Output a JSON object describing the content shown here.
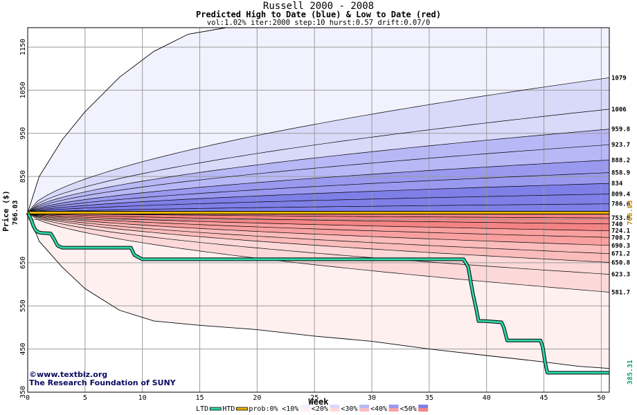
{
  "header": {
    "title": "Russell 2000 - 2008",
    "subtitle": "Predicted High to Date (blue) &  Low to Date (red)",
    "params": "vol:1.02% iter:2000 step:10 hurst:0.57 drift:0.07/0"
  },
  "credits": {
    "line1": "www.textbiz.org",
    "line2": "The Research Foundation of SUNY"
  },
  "colors": {
    "htd": "#e8b400",
    "ltd": "#2ed6a6",
    "blue_bands": [
      "#f2f2fe",
      "#d9d9fa",
      "#b8b8f6",
      "#9999f0",
      "#7f7fe8"
    ],
    "red_bands": [
      "#fff0f0",
      "#fdd8d8",
      "#fbbcbc",
      "#f9a0a0",
      "#f48484"
    ]
  },
  "chart_data": {
    "type": "line",
    "title": "Russell 2000 - 2008",
    "xlabel": "Week",
    "ylabel": "Price ($)",
    "xlim": [
      0,
      50.7
    ],
    "ylim": [
      350,
      1195
    ],
    "x_ticks": [
      0,
      5,
      10,
      15,
      20,
      25,
      30,
      35,
      40,
      45,
      50
    ],
    "y_ticks": [
      350,
      450,
      550,
      650,
      750,
      850,
      950,
      1050,
      1150
    ],
    "y_tick_labels": [
      "350",
      "450",
      "550",
      "650",
      "",
      "850",
      "950",
      "1050",
      "1150"
    ],
    "start_price": 766.03,
    "start_price_label": "766.03",
    "htd_value_label": "766.03",
    "ltd_value_label": "385.31",
    "grid": true,
    "upper_envelope": [
      [
        0,
        766
      ],
      [
        1,
        850
      ],
      [
        3,
        935
      ],
      [
        5,
        1000
      ],
      [
        8,
        1080
      ],
      [
        11,
        1140
      ],
      [
        14,
        1180
      ],
      [
        17.3,
        1195
      ],
      [
        50.7,
        1195
      ]
    ],
    "lower_envelope": [
      [
        0,
        766
      ],
      [
        1,
        700
      ],
      [
        3,
        640
      ],
      [
        5,
        590
      ],
      [
        8,
        540
      ],
      [
        11,
        515
      ],
      [
        15,
        505
      ],
      [
        20,
        495
      ],
      [
        25,
        480
      ],
      [
        30,
        468
      ],
      [
        35,
        450
      ],
      [
        40,
        435
      ],
      [
        45,
        420
      ],
      [
        48,
        410
      ],
      [
        50.7,
        405
      ]
    ],
    "quantile_end_labels": [
      "1079",
      "1006",
      "959.8",
      "923.7",
      "888.2",
      "858.9",
      "834",
      "809.4",
      "786.6",
      "753.8",
      "740",
      "724.1",
      "708.7",
      "690.3",
      "671.2",
      "650.8",
      "623.3",
      "581.7"
    ],
    "quantile_end_values": [
      1079,
      1006,
      959.8,
      923.7,
      888.2,
      858.9,
      834,
      809.4,
      786.6,
      753.8,
      740,
      724.1,
      708.7,
      690.3,
      671.2,
      650.8,
      623.3,
      581.7
    ],
    "ltd_series": [
      [
        0,
        766
      ],
      [
        0.3,
        750
      ],
      [
        0.5,
        735
      ],
      [
        0.7,
        725
      ],
      [
        1.0,
        720
      ],
      [
        1.3,
        719
      ],
      [
        2.0,
        718
      ],
      [
        2.2,
        710
      ],
      [
        2.6,
        690
      ],
      [
        3.0,
        685
      ],
      [
        9.0,
        685
      ],
      [
        9.3,
        668
      ],
      [
        10,
        658
      ],
      [
        38.0,
        658
      ],
      [
        38.4,
        640
      ],
      [
        38.8,
        580
      ],
      [
        39.1,
        543
      ],
      [
        39.3,
        515
      ],
      [
        39.8,
        515
      ],
      [
        41.3,
        512
      ],
      [
        41.5,
        500
      ],
      [
        41.8,
        470
      ],
      [
        44.7,
        470
      ],
      [
        44.9,
        455
      ],
      [
        45.1,
        420
      ],
      [
        45.3,
        395
      ],
      [
        50.7,
        395
      ]
    ],
    "htd_series": [
      [
        0,
        766
      ],
      [
        50.7,
        766
      ]
    ],
    "legend": {
      "items": [
        {
          "label": "LTD",
          "swatch": "#2ed6a6"
        },
        {
          "label": "HTD",
          "swatch": "#e8b400"
        },
        {
          "label": "prob:0%",
          "swatch": ""
        },
        {
          "label": "<10%",
          "swatch": "#f2f2fe|#fff0f0"
        },
        {
          "label": "<20%",
          "swatch": "#d9d9fa|#fdd8d8"
        },
        {
          "label": "<30%",
          "swatch": "#b8b8f6|#fbbcbc"
        },
        {
          "label": "<40%",
          "swatch": "#9999f0|#f9a0a0"
        },
        {
          "label": "<50%",
          "swatch": "#7f7fe8|#f48484"
        }
      ],
      "placement": "bottom"
    }
  }
}
